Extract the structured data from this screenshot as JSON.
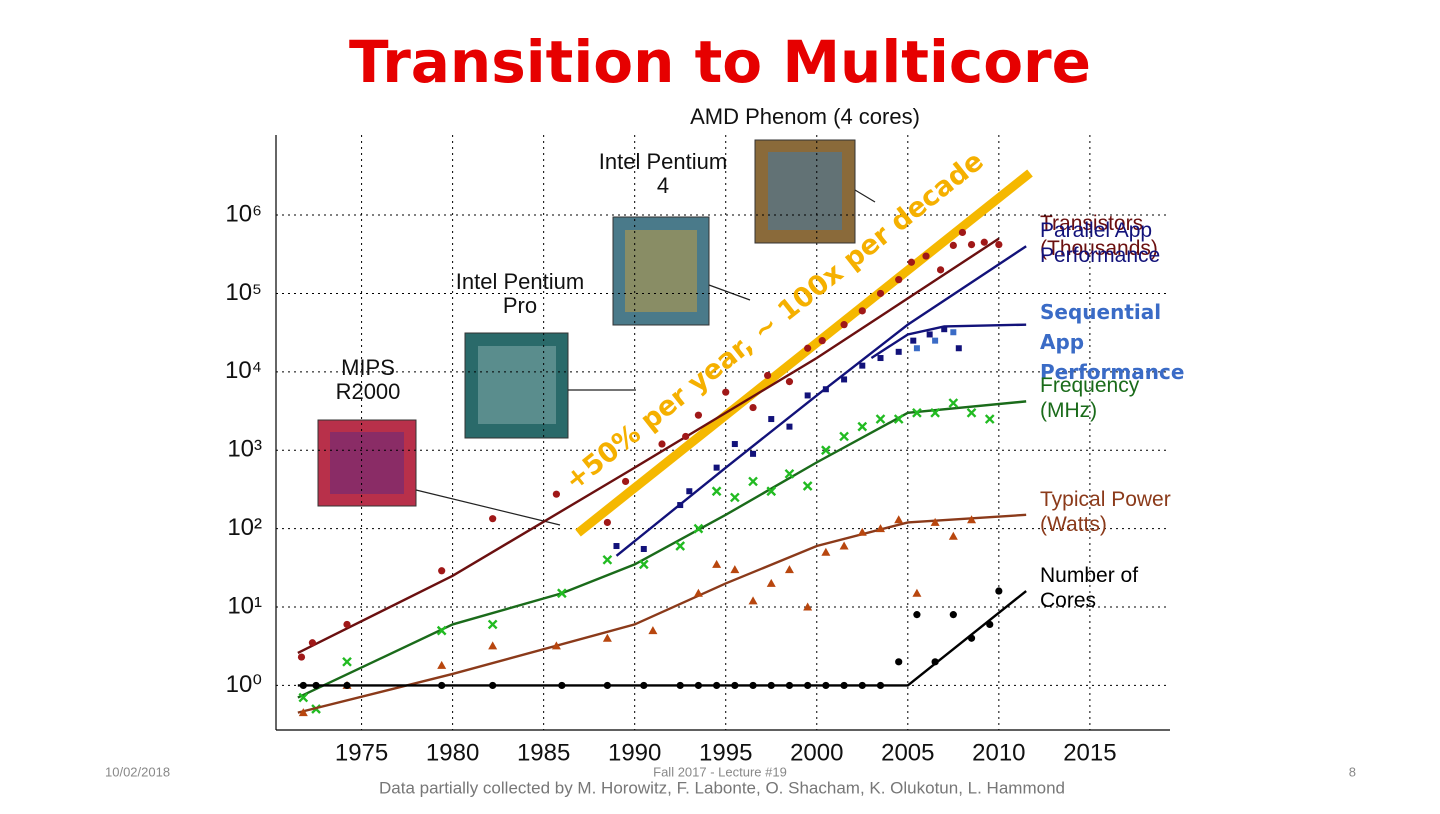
{
  "chart_data": {
    "type": "scatter",
    "title": "Transition to Multicore",
    "annotation": "+50% per year, ~ 100x per decade",
    "chips": [
      "AMD Phenom (4 cores)",
      "Intel Pentium 4",
      "Intel Pentium Pro",
      "MIPS R2000"
    ],
    "credit": "Data partially collected by M. Horowitz, F. Labonte, O. Shacham, K. Olukotun, L. Hammond",
    "log_y": true,
    "grid": true,
    "xlim": [
      1970.3,
      2019.4
    ],
    "xticks": [
      1975,
      1980,
      1985,
      1990,
      1995,
      2000,
      2005,
      2010,
      2015
    ],
    "ylim": [
      0.27,
      10500000
    ],
    "yticks": [
      {
        "value": 1,
        "label": "10⁰"
      },
      {
        "value": 10,
        "label": "10¹"
      },
      {
        "value": 100,
        "label": "10²"
      },
      {
        "value": 1000,
        "label": "10³"
      },
      {
        "value": 10000,
        "label": "10⁴"
      },
      {
        "value": 100000,
        "label": "10⁵"
      },
      {
        "value": 1000000,
        "label": "10⁶"
      }
    ],
    "series": [
      {
        "name": "Transistors (Thousands)",
        "color": "#a01818",
        "line_color": "#6b1010",
        "marker": "circle",
        "x": [
          1971.7,
          1972.3,
          1974.2,
          1979.4,
          1982.2,
          1985.7,
          1988.5,
          1989.5,
          1991.5,
          1992.8,
          1993.5,
          1995,
          1996.5,
          1997.3,
          1998.5,
          1999.5,
          2000.3,
          2001.5,
          2002.5,
          2003.5,
          2004.5,
          2005.2,
          2006,
          2006.8,
          2007.5,
          2008,
          2008.5,
          2009.2,
          2010
        ],
        "values": [
          2.3,
          3.5,
          6,
          29,
          134,
          275,
          120,
          400,
          1200,
          1500,
          2800,
          5500,
          3500,
          9000,
          7500,
          20000,
          25000,
          40000,
          60000,
          100000,
          150000,
          250000,
          300000,
          200000,
          410000,
          600000,
          420000,
          450000,
          420000
        ],
        "fit": {
          "x": [
            1971.5,
            1980,
            1990,
            2000,
            2010
          ],
          "values": [
            2.6,
            25,
            600,
            15000,
            500000
          ]
        }
      },
      {
        "name": "Parallel App Performance",
        "color": "#12127a",
        "line_color": "#12127a",
        "marker": "square",
        "x": [
          1989,
          1990.5,
          1992.5,
          1993,
          1994.5,
          1995.5,
          1996.5,
          1997.5,
          1998.5,
          1999.5,
          2000.5,
          2001.5,
          2002.5,
          2003.5,
          2004.5,
          2005.3,
          2006.2,
          2007,
          2007.8
        ],
        "values": [
          60,
          55,
          200,
          300,
          600,
          1200,
          900,
          2500,
          2000,
          5000,
          6000,
          8000,
          12000,
          15000,
          18000,
          25000,
          30000,
          35000,
          20000
        ],
        "fit": {
          "x": [
            1989,
            1995,
            2000,
            2005,
            2011.5
          ],
          "values": [
            45,
            600,
            5000,
            40000,
            400000
          ]
        }
      },
      {
        "name": "Sequential App Performance",
        "color": "#3a6bc6",
        "line_color": "#12127a",
        "marker": "square",
        "label_bold": true,
        "x": [
          2005.5,
          2006.5,
          2007.5
        ],
        "values": [
          20000,
          25000,
          32000
        ],
        "fit": {
          "x": [
            2003,
            2005,
            2007,
            2011.5
          ],
          "values": [
            15000,
            30000,
            38000,
            40000
          ]
        }
      },
      {
        "name": "Frequency (MHz)",
        "color": "#22bb22",
        "line_color": "#1a6b1a",
        "marker": "cross",
        "x": [
          1971.8,
          1972.5,
          1974.2,
          1979.4,
          1982.2,
          1986,
          1988.5,
          1990.5,
          1992.5,
          1993.5,
          1994.5,
          1995.5,
          1996.5,
          1997.5,
          1998.5,
          1999.5,
          2000.5,
          2001.5,
          2002.5,
          2003.5,
          2004.5,
          2005.5,
          2006.5,
          2007.5,
          2008.5,
          2009.5
        ],
        "values": [
          0.7,
          0.5,
          2,
          5,
          6,
          15,
          40,
          35,
          60,
          100,
          300,
          250,
          400,
          300,
          500,
          350,
          1000,
          1500,
          2000,
          2500,
          2500,
          3000,
          3000,
          4000,
          3000,
          2500
        ],
        "fit": {
          "x": [
            1971.5,
            1980,
            1986,
            1990,
            1995,
            2000,
            2005,
            2011.5
          ],
          "values": [
            0.7,
            6,
            15,
            35,
            150,
            700,
            3000,
            4200
          ]
        }
      },
      {
        "name": "Typical Power (Watts)",
        "color": "#b8460e",
        "line_color": "#8b3a1a",
        "marker": "triangle",
        "x": [
          1971.8,
          1974.2,
          1979.4,
          1982.2,
          1985.7,
          1988.5,
          1991,
          1993.5,
          1994.5,
          1995.5,
          1996.5,
          1997.5,
          1998.5,
          1999.5,
          2000.5,
          2001.5,
          2002.5,
          2003.5,
          2004.5,
          2005.5,
          2006.5,
          2007.5,
          2008.5
        ],
        "values": [
          0.45,
          1,
          1.8,
          3.2,
          3.2,
          4,
          5,
          15,
          35,
          30,
          12,
          20,
          30,
          10,
          50,
          60,
          90,
          100,
          130,
          15,
          120,
          80,
          130
        ],
        "fit": {
          "x": [
            1971.5,
            1980,
            1990,
            1995,
            2000,
            2005,
            2011.5
          ],
          "values": [
            0.45,
            1.4,
            6,
            20,
            60,
            120,
            150
          ]
        }
      },
      {
        "name": "Number of Cores",
        "color": "#000000",
        "line_color": "#000000",
        "marker": "circle",
        "x": [
          1971.8,
          1972.5,
          1974.2,
          1979.4,
          1982.2,
          1986,
          1988.5,
          1990.5,
          1992.5,
          1993.5,
          1994.5,
          1995.5,
          1996.5,
          1997.5,
          1998.5,
          1999.5,
          2000.5,
          2001.5,
          2002.5,
          2003.5,
          2004.5,
          2005.5,
          2006.5,
          2007.5,
          2008.5,
          2009.5,
          2010
        ],
        "values": [
          1,
          1,
          1,
          1,
          1,
          1,
          1,
          1,
          1,
          1,
          1,
          1,
          1,
          1,
          1,
          1,
          1,
          1,
          1,
          1,
          2,
          8,
          2,
          8,
          4,
          6,
          16
        ],
        "fit": {
          "x": [
            1971.5,
            2005,
            2011.5
          ],
          "values": [
            1,
            1,
            16
          ]
        }
      }
    ]
  },
  "footer": {
    "date": "10/02/2018",
    "center": "Fall 2017 - Lecture #19",
    "page": "8"
  }
}
